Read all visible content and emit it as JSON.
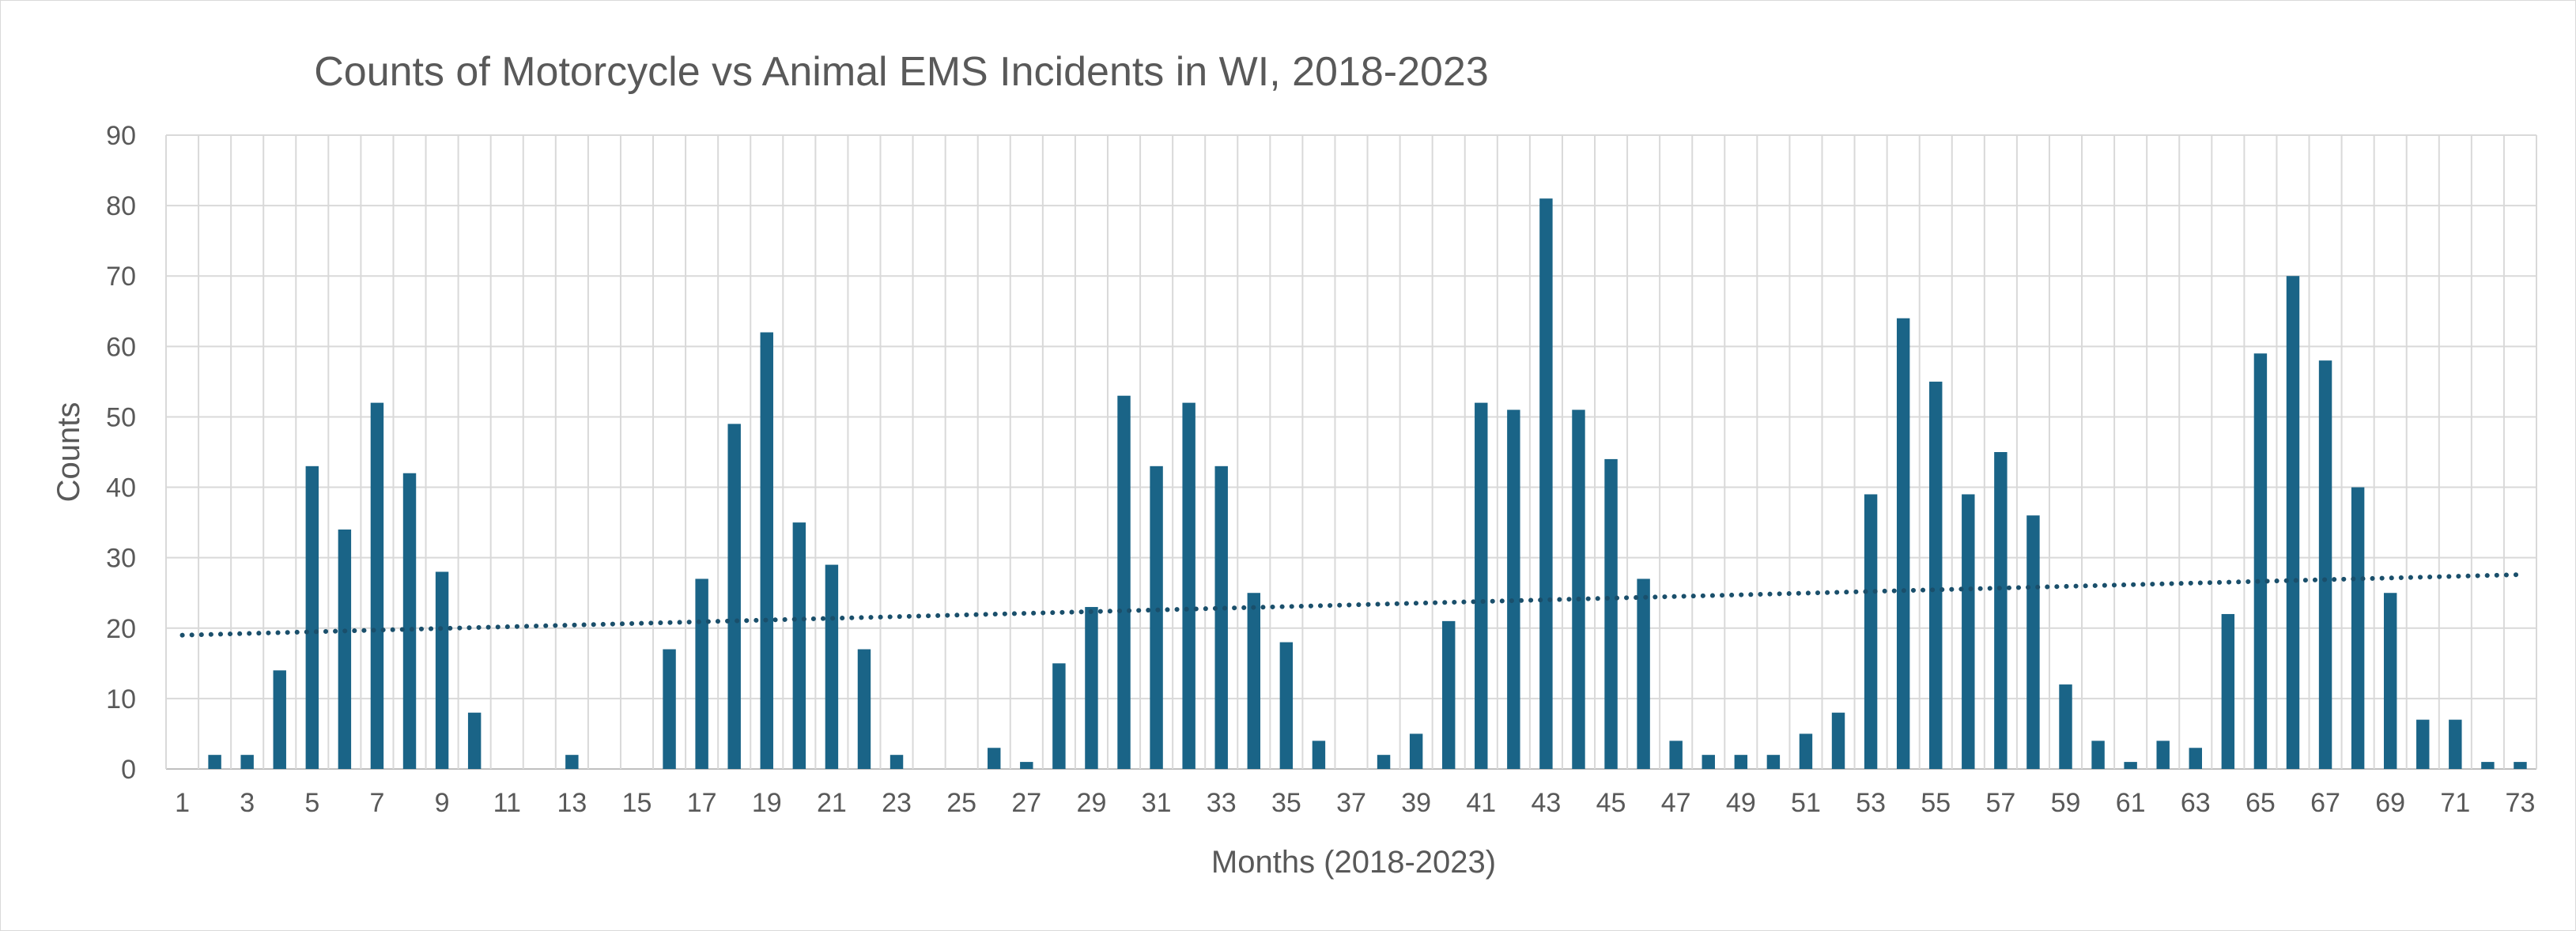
{
  "chart_data": {
    "type": "bar",
    "title": "Counts of Motorcycle vs Animal EMS Incidents in WI, 2018-2023",
    "xlabel": "Months (2018-2023)",
    "ylabel": "Counts",
    "ylim": [
      0,
      90
    ],
    "y_ticks": [
      "0",
      "10",
      "20",
      "30",
      "40",
      "50",
      "60",
      "70",
      "80",
      "90"
    ],
    "x_tick_labels": [
      "1",
      "3",
      "5",
      "7",
      "9",
      "11",
      "13",
      "15",
      "17",
      "19",
      "21",
      "23",
      "25",
      "27",
      "29",
      "31",
      "33",
      "35",
      "37",
      "39",
      "41",
      "43",
      "45",
      "47",
      "49",
      "51",
      "53",
      "55",
      "57",
      "59",
      "61",
      "63",
      "65",
      "67",
      "69",
      "71",
      "73"
    ],
    "categories": [
      1,
      2,
      3,
      4,
      5,
      6,
      7,
      8,
      9,
      10,
      11,
      12,
      13,
      14,
      15,
      16,
      17,
      18,
      19,
      20,
      21,
      22,
      23,
      24,
      25,
      26,
      27,
      28,
      29,
      30,
      31,
      32,
      33,
      34,
      35,
      36,
      37,
      38,
      39,
      40,
      41,
      42,
      43,
      44,
      45,
      46,
      47,
      48,
      49,
      50,
      51,
      52,
      53,
      54,
      55,
      56,
      57,
      58,
      59,
      60,
      61,
      62,
      63,
      64,
      65,
      66,
      67,
      68,
      69,
      70,
      71,
      72,
      73
    ],
    "values": [
      0,
      2,
      2,
      14,
      43,
      34,
      52,
      42,
      28,
      8,
      0,
      0,
      2,
      0,
      0,
      17,
      27,
      49,
      62,
      35,
      29,
      17,
      2,
      0,
      0,
      3,
      1,
      15,
      23,
      53,
      43,
      52,
      43,
      25,
      18,
      4,
      0,
      2,
      5,
      21,
      52,
      51,
      81,
      51,
      44,
      27,
      4,
      2,
      2,
      2,
      5,
      8,
      39,
      64,
      55,
      39,
      45,
      36,
      12,
      4,
      1,
      4,
      3,
      22,
      59,
      70,
      58,
      40,
      25,
      7,
      7,
      1,
      1
    ],
    "trendline": {
      "type": "linear",
      "start_value": 19.0,
      "end_value": 27.6,
      "style": "dotted"
    },
    "grid": true,
    "legend": "none",
    "colors": {
      "bar": "#1a6487",
      "trendline": "#1a4f6b",
      "grid": "#d9d9d9",
      "text": "#595959"
    }
  }
}
